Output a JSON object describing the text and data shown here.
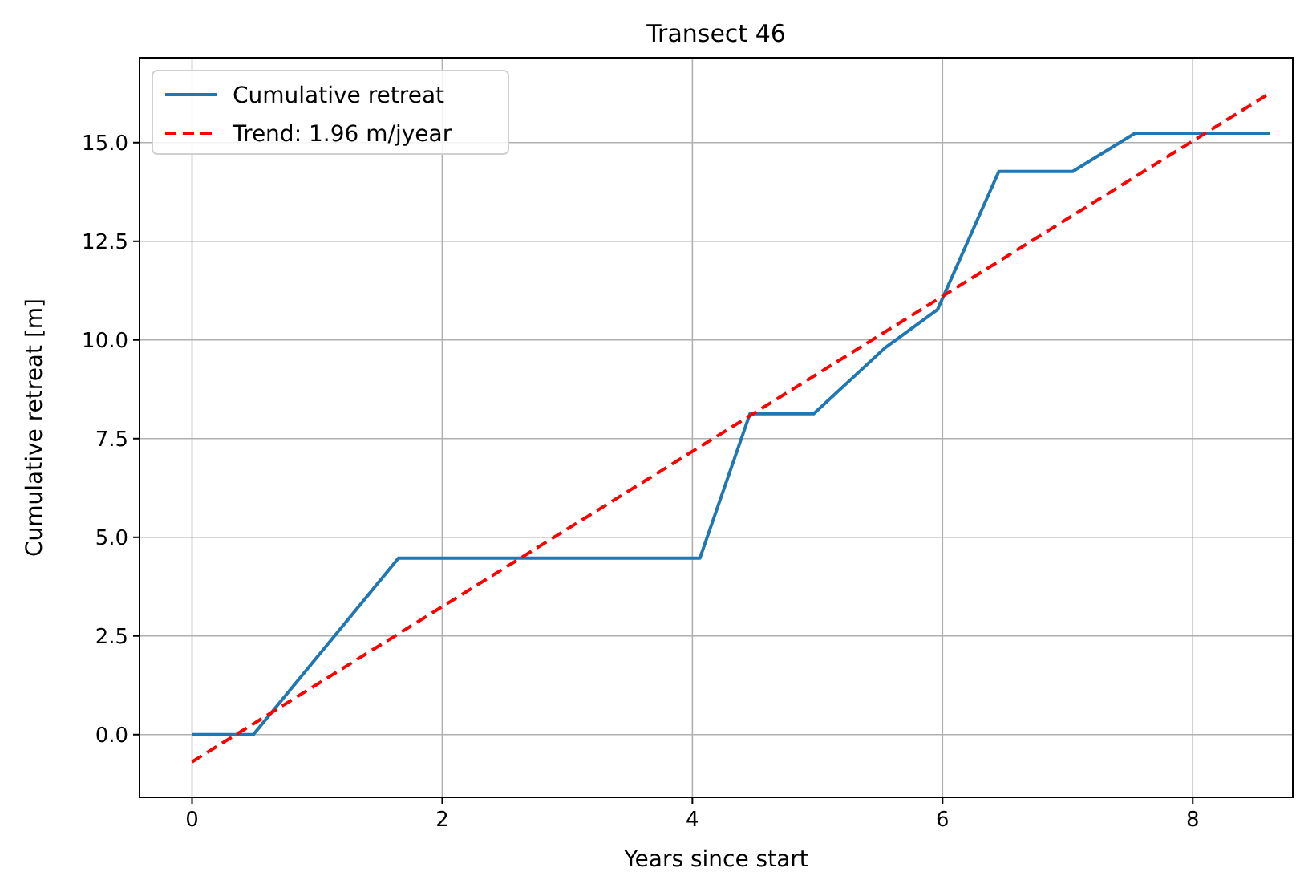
{
  "chart_data": {
    "type": "line",
    "title": "Transect 46",
    "xlabel": "Years since start",
    "ylabel": "Cumulative retreat [m]",
    "series": [
      {
        "name": "Cumulative retreat",
        "color": "#1f77b4",
        "line_style": "solid",
        "x": [
          0,
          0.49,
          1.65,
          4.06,
          4.46,
          4.97,
          5.54,
          5.96,
          6.45,
          7.04,
          7.54,
          8.62
        ],
        "values": [
          0,
          0,
          4.47,
          4.47,
          8.13,
          8.13,
          9.8,
          10.77,
          14.27,
          14.27,
          15.24,
          15.24
        ]
      },
      {
        "name": "Trend: 1.96 m/jyear",
        "color": "#ff0000",
        "line_style": "dashed",
        "x": [
          0,
          8.62
        ],
        "values": [
          -0.69,
          16.26
        ]
      }
    ],
    "xlim": [
      -0.42,
      8.8
    ],
    "ylim": [
      -1.59,
      17.15
    ],
    "xticks": [
      0,
      2,
      4,
      6,
      8
    ],
    "yticks": [
      {
        "value": 0,
        "label": "0.0"
      },
      {
        "value": 2.5,
        "label": "2.5"
      },
      {
        "value": 5,
        "label": "5.0"
      },
      {
        "value": 7.5,
        "label": "7.5"
      },
      {
        "value": 10,
        "label": "10.0"
      },
      {
        "value": 12.5,
        "label": "12.5"
      },
      {
        "value": 15,
        "label": "15.0"
      }
    ],
    "grid": true,
    "legend": "top left",
    "marker": "none"
  }
}
